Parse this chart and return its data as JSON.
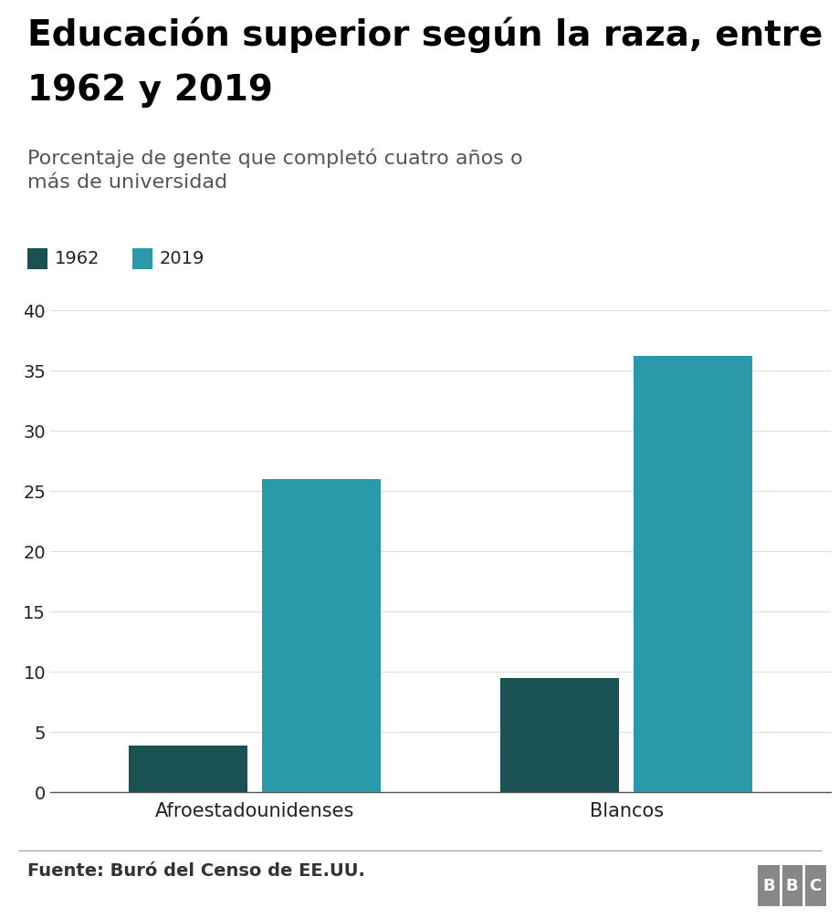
{
  "title_line1": "Educación superior según la raza, entre",
  "title_line2": "1962 y 2019",
  "subtitle": "Porcentaje de gente que completó cuatro años o\nmás de universidad",
  "categories": [
    "Afroestadounidenses",
    "Blancos"
  ],
  "values_1962": [
    3.9,
    9.5
  ],
  "values_2019": [
    26.0,
    36.2
  ],
  "color_1962": "#1a5254",
  "color_2019": "#2a9aaa",
  "legend_labels": [
    "1962",
    "2019"
  ],
  "ylim": [
    0,
    40
  ],
  "yticks": [
    0,
    5,
    10,
    15,
    20,
    25,
    30,
    35,
    40
  ],
  "footer": "Fuente: Buró del Censo de EE.UU.",
  "bbc_label": "BBC",
  "background_color": "#ffffff",
  "title_fontsize": 28,
  "subtitle_fontsize": 16,
  "tick_fontsize": 14,
  "xlabel_fontsize": 15,
  "legend_fontsize": 14,
  "footer_fontsize": 14,
  "bar_width": 0.32,
  "bar_gap": 0.04
}
